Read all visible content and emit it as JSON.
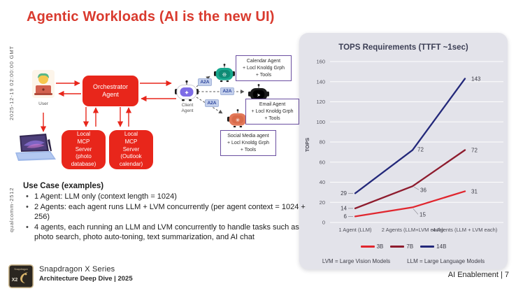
{
  "title": "Agentic Workloads (AI is the new UI)",
  "watermarks": {
    "timestamp": "2025-12-19 02:00:00 GMT",
    "id": "qualcomm-2512"
  },
  "diagram": {
    "user_label": "User",
    "orchestrator_label": "Orchestrator\nAgent",
    "mcp_photo_label": "Local\nMCP\nServer\n(photo\ndatabase)",
    "mcp_outlook_label": "Local\nMCP\nServer\n(Outlook\ncalendar)",
    "client_agent_label": "Client\nAgent",
    "a2a_labels": [
      "A2A",
      "A2A",
      "A2A"
    ],
    "agent_boxes": {
      "calendar": "Calendar Agent\n+ Locl Knoldg Grph\n+ Tools",
      "email": "Email Agent\n+ Locl Knoldg Grph\n+ Tools",
      "social": "Social Media agent\n+ Locl Knoldg Grph\n+ Tools"
    },
    "icons": {
      "client_glyph": "✦",
      "calendar_glyph": "❊",
      "email_glyph": "➤",
      "social_glyph": "✳"
    }
  },
  "chart_data": {
    "type": "line",
    "title": "TOPS Requirements (TTFT ~1sec)",
    "xlabel": "",
    "ylabel": "TOPS",
    "ylim": [
      0,
      160
    ],
    "ytick_step": 20,
    "grid": true,
    "legend_position": "bottom",
    "categories": [
      "1 Agent (LLM)",
      "2 Agents (LLM+LVM each)",
      "4 Agents (LLM + LVM each)"
    ],
    "series": [
      {
        "name": "3B",
        "color": "#e0262e",
        "values": [
          6,
          15,
          31
        ]
      },
      {
        "name": "7B",
        "color": "#8e1c2e",
        "values": [
          14,
          36,
          72
        ]
      },
      {
        "name": "14B",
        "color": "#23287a",
        "values": [
          29,
          72,
          143
        ]
      }
    ],
    "notes": [
      "LVM = Large Vision Models",
      "LLM = Large Language Models"
    ]
  },
  "use_case": {
    "title": "Use Case (examples)",
    "bullets": [
      "1 Agent: LLM only (context length = 1024)",
      "2 Agents: each agent runs LLM + LVM concurrently (per agent context = 1024 + 256)",
      "4 agents, each running an LLM and LVM concurrently to handle tasks such as photo search, photo auto-toning, text summarization, and AI chat"
    ]
  },
  "footer": {
    "brand_line1": "Snapdragon X Series",
    "brand_line2": "Architecture Deep Dive | 2025",
    "right": "AI Enablement  |  7"
  },
  "colors": {
    "accent_red": "#e8261b",
    "title_red": "#d93a2e",
    "panel_bg": "#e3e3ea",
    "info_border": "#6b4fa1",
    "a2a_bg": "#c3cfeb"
  }
}
